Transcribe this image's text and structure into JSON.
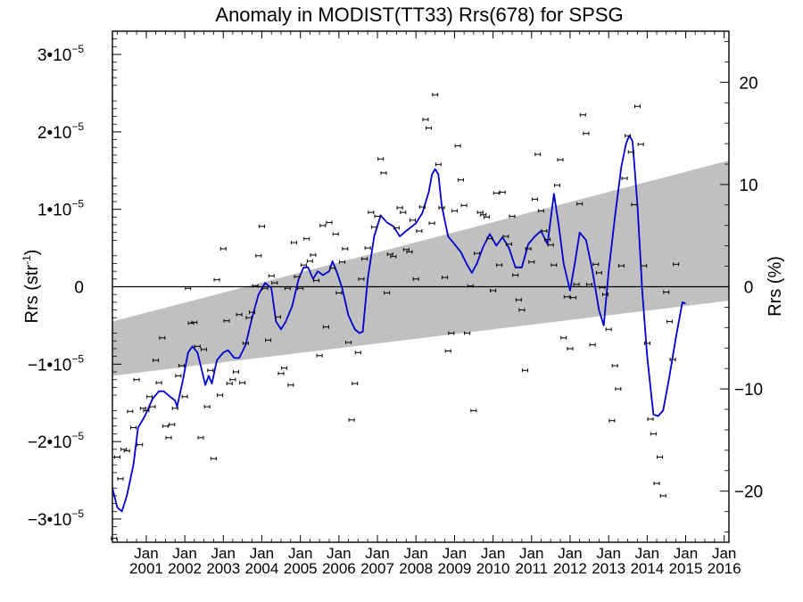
{
  "chart_data": {
    "type": "scatter",
    "title": "Anomaly in MODIST(TT33) Rrs(678) for SPSG",
    "ylabel": "Rrs (str",
    "ylabel_sup": "-1",
    "ylabel_close": ")",
    "y2label": "Rrs (%)",
    "x_range": [
      "2000-02-15",
      "2016-02-15"
    ],
    "ylim": [
      -3.3e-05,
      3.3e-05
    ],
    "y2lim": [
      -25,
      25
    ],
    "y_ticks": [
      {
        "value": -3e-05,
        "mantissa": "−3",
        "exp": "−5"
      },
      {
        "value": -2e-05,
        "mantissa": "−2",
        "exp": "−5"
      },
      {
        "value": -1e-05,
        "mantissa": "−1",
        "exp": "−5"
      },
      {
        "value": 0,
        "mantissa": "0",
        "exp": ""
      },
      {
        "value": 1e-05,
        "mantissa": "1",
        "exp": "−5"
      },
      {
        "value": 2e-05,
        "mantissa": "2",
        "exp": "−5"
      },
      {
        "value": 3e-05,
        "mantissa": "3",
        "exp": "−5"
      }
    ],
    "y2_ticks": [
      {
        "value": -20,
        "label": "−20"
      },
      {
        "value": -10,
        "label": "−10"
      },
      {
        "value": 0,
        "label": "0"
      },
      {
        "value": 10,
        "label": "10"
      },
      {
        "value": 20,
        "label": "20"
      }
    ],
    "x_ticks": [
      {
        "date": "2001-01-01",
        "month": "Jan",
        "year": "2001"
      },
      {
        "date": "2002-01-01",
        "month": "Jan",
        "year": "2002"
      },
      {
        "date": "2003-01-01",
        "month": "Jan",
        "year": "2003"
      },
      {
        "date": "2004-01-01",
        "month": "Jan",
        "year": "2004"
      },
      {
        "date": "2005-01-01",
        "month": "Jan",
        "year": "2005"
      },
      {
        "date": "2006-01-01",
        "month": "Jan",
        "year": "2006"
      },
      {
        "date": "2007-01-01",
        "month": "Jan",
        "year": "2007"
      },
      {
        "date": "2008-01-01",
        "month": "Jan",
        "year": "2008"
      },
      {
        "date": "2009-01-01",
        "month": "Jan",
        "year": "2009"
      },
      {
        "date": "2010-01-01",
        "month": "Jan",
        "year": "2010"
      },
      {
        "date": "2011-01-01",
        "month": "Jan",
        "year": "2011"
      },
      {
        "date": "2012-01-01",
        "month": "Jan",
        "year": "2012"
      },
      {
        "date": "2013-01-01",
        "month": "Jan",
        "year": "2013"
      },
      {
        "date": "2014-01-01",
        "month": "Jan",
        "year": "2014"
      },
      {
        "date": "2015-01-01",
        "month": "Jan",
        "year": "2015"
      },
      {
        "date": "2016-01-01",
        "month": "Jan",
        "year": "2016"
      }
    ],
    "band": {
      "start": {
        "date": "2000-02-15",
        "low": -1.15e-05,
        "high": -4.5e-06
      },
      "end": {
        "date": "2016-02-15",
        "low": -1.8e-06,
        "high": 1.63e-05
      }
    },
    "zero_line": 0,
    "colors": {
      "points": "#000000",
      "smooth_line": "#0000cc",
      "band": "#c0c0c0"
    },
    "points": [
      [
        "2000-03-01",
        -3.25e-05
      ],
      [
        "2000-04-01",
        -2.2e-05
      ],
      [
        "2000-05-01",
        -2.48e-05
      ],
      [
        "2000-06-01",
        -2.1e-05
      ],
      [
        "2000-07-01",
        -2.12e-05
      ],
      [
        "2000-08-01",
        -1.61e-05
      ],
      [
        "2000-09-01",
        -1.82e-05
      ],
      [
        "2000-10-01",
        -1.2e-05
      ],
      [
        "2000-11-01",
        -2.04e-05
      ],
      [
        "2000-12-01",
        -1.57e-05
      ],
      [
        "2001-01-01",
        -1.6e-05
      ],
      [
        "2001-02-01",
        -1.42e-05
      ],
      [
        "2001-03-01",
        -1.55e-05
      ],
      [
        "2001-04-01",
        -9.5e-06
      ],
      [
        "2001-05-01",
        -1.24e-05
      ],
      [
        "2001-06-01",
        -6.6e-06
      ],
      [
        "2001-07-01",
        -1.8e-05
      ],
      [
        "2001-08-01",
        -1.95e-05
      ],
      [
        "2001-09-01",
        -1.78e-05
      ],
      [
        "2001-10-01",
        -1.57e-05
      ],
      [
        "2001-11-01",
        -1.15e-05
      ],
      [
        "2001-12-01",
        -1.02e-05
      ],
      [
        "2002-01-01",
        -1.42e-05
      ],
      [
        "2002-02-01",
        -2e-07
      ],
      [
        "2002-03-01",
        -4.7e-06
      ],
      [
        "2002-04-01",
        -4.6e-06
      ],
      [
        "2002-05-01",
        -7.7e-06
      ],
      [
        "2002-06-01",
        -1.95e-05
      ],
      [
        "2002-07-01",
        -8.1e-06
      ],
      [
        "2002-08-01",
        -1.55e-05
      ],
      [
        "2002-09-01",
        -1.08e-05
      ],
      [
        "2002-10-01",
        -2.22e-05
      ],
      [
        "2002-11-01",
        9e-07
      ],
      [
        "2002-12-01",
        -1.4e-05
      ],
      [
        "2003-01-01",
        4.9e-06
      ],
      [
        "2003-02-01",
        -4.4e-06
      ],
      [
        "2003-03-01",
        -1.25e-05
      ],
      [
        "2003-04-01",
        -1.2e-05
      ],
      [
        "2003-05-01",
        -1.1e-05
      ],
      [
        "2003-06-01",
        -3.6e-06
      ],
      [
        "2003-07-01",
        -1.24e-05
      ],
      [
        "2003-08-01",
        -7.3e-06
      ],
      [
        "2003-09-01",
        -4e-06
      ],
      [
        "2003-10-01",
        -3.3e-06
      ],
      [
        "2003-11-01",
        1e-07
      ],
      [
        "2003-12-01",
        4e-06
      ],
      [
        "2004-01-01",
        7.8e-06
      ],
      [
        "2004-02-01",
        -2e-07
      ],
      [
        "2004-03-01",
        -6.9e-06
      ],
      [
        "2004-04-01",
        1.4e-06
      ],
      [
        "2004-05-01",
        5e-07
      ],
      [
        "2004-06-01",
        -3.9e-06
      ],
      [
        "2004-07-01",
        -1.12e-05
      ],
      [
        "2004-08-01",
        -1.05e-05
      ],
      [
        "2004-09-01",
        -2e-07
      ],
      [
        "2004-10-01",
        -1.27e-05
      ],
      [
        "2004-11-01",
        5.7e-06
      ],
      [
        "2004-12-01",
        1.3e-06
      ],
      [
        "2005-01-01",
        -2e-07
      ],
      [
        "2005-02-01",
        2.8e-06
      ],
      [
        "2005-03-01",
        6.2e-06
      ],
      [
        "2005-04-01",
        3.3e-06
      ],
      [
        "2005-05-01",
        4.1e-06
      ],
      [
        "2005-06-01",
        8e-07
      ],
      [
        "2005-07-01",
        -8.9e-06
      ],
      [
        "2005-08-01",
        7.9e-06
      ],
      [
        "2005-09-01",
        -5.2e-06
      ],
      [
        "2005-10-01",
        8.3e-06
      ],
      [
        "2005-11-01",
        2.4e-06
      ],
      [
        "2005-12-01",
        6.8e-06
      ],
      [
        "2006-01-01",
        -8e-07
      ],
      [
        "2006-02-01",
        3.2e-06
      ],
      [
        "2006-03-01",
        4.9e-06
      ],
      [
        "2006-04-01",
        -7.2e-06
      ],
      [
        "2006-05-01",
        -1.72e-05
      ],
      [
        "2006-06-01",
        -1.25e-05
      ],
      [
        "2006-07-01",
        -8.5e-06
      ],
      [
        "2006-08-01",
        1e-06
      ],
      [
        "2006-09-01",
        3.6e-06
      ],
      [
        "2006-10-01",
        5e-06
      ],
      [
        "2006-11-01",
        9.6e-06
      ],
      [
        "2006-12-01",
        7.7e-06
      ],
      [
        "2007-01-01",
        9.1e-06
      ],
      [
        "2007-02-01",
        1.65e-05
      ],
      [
        "2007-03-01",
        1.47e-05
      ],
      [
        "2007-04-01",
        -8e-07
      ],
      [
        "2007-05-01",
        4.2e-06
      ],
      [
        "2007-06-01",
        3.9e-06
      ],
      [
        "2007-07-01",
        7.6e-06
      ],
      [
        "2007-08-01",
        1.02e-05
      ],
      [
        "2007-09-01",
        9.6e-06
      ],
      [
        "2007-10-01",
        4.8e-06
      ],
      [
        "2007-11-01",
        4.5e-06
      ],
      [
        "2007-12-01",
        8.6e-06
      ],
      [
        "2008-01-01",
        1e-06
      ],
      [
        "2008-02-01",
        7.2e-06
      ],
      [
        "2008-03-01",
        1.03e-05
      ],
      [
        "2008-04-01",
        2.16e-05
      ],
      [
        "2008-05-01",
        2.05e-05
      ],
      [
        "2008-06-01",
        8.2e-06
      ],
      [
        "2008-07-01",
        2.48e-05
      ],
      [
        "2008-08-01",
        1.58e-05
      ],
      [
        "2008-09-01",
        1.02e-05
      ],
      [
        "2008-10-01",
        1.2e-06
      ],
      [
        "2008-11-01",
        -8.3e-06
      ],
      [
        "2008-12-01",
        -6e-06
      ],
      [
        "2009-01-01",
        9.8e-06
      ],
      [
        "2009-02-01",
        1.82e-05
      ],
      [
        "2009-03-01",
        1.38e-05
      ],
      [
        "2009-04-01",
        1.05e-05
      ],
      [
        "2009-05-01",
        -6e-06
      ],
      [
        "2009-06-01",
        1e-07
      ],
      [
        "2009-07-01",
        -1.6e-05
      ],
      [
        "2009-08-01",
        4.3e-06
      ],
      [
        "2009-09-01",
        9.6e-06
      ],
      [
        "2009-10-01",
        9.3e-06
      ],
      [
        "2009-11-01",
        9e-06
      ],
      [
        "2009-12-01",
        6.2e-06
      ],
      [
        "2010-01-01",
        -5e-07
      ],
      [
        "2010-02-01",
        1.21e-05
      ],
      [
        "2010-03-01",
        2.8e-06
      ],
      [
        "2010-04-01",
        1.22e-05
      ],
      [
        "2010-05-01",
        6.5e-06
      ],
      [
        "2010-06-01",
        5.5e-06
      ],
      [
        "2010-07-01",
        9.1e-06
      ],
      [
        "2010-08-01",
        1.5e-06
      ],
      [
        "2010-09-01",
        -1.7e-06
      ],
      [
        "2010-10-01",
        -3e-06
      ],
      [
        "2010-11-01",
        -1.08e-05
      ],
      [
        "2010-12-01",
        4.9e-06
      ],
      [
        "2011-01-01",
        3.2e-06
      ],
      [
        "2011-02-01",
        1.13e-05
      ],
      [
        "2011-03-01",
        1.71e-05
      ],
      [
        "2011-04-01",
        9.8e-06
      ],
      [
        "2011-05-01",
        7.2e-06
      ],
      [
        "2011-06-01",
        6.1e-06
      ],
      [
        "2011-07-01",
        5.4e-06
      ],
      [
        "2011-08-01",
        2.8e-06
      ],
      [
        "2011-09-01",
        1.31e-05
      ],
      [
        "2011-10-01",
        1.64e-05
      ],
      [
        "2011-11-01",
        -6.6e-06
      ],
      [
        "2011-12-01",
        -1.3e-06
      ],
      [
        "2012-01-01",
        -8e-06
      ],
      [
        "2012-02-01",
        -1.4e-06
      ],
      [
        "2012-03-01",
        3e-07
      ],
      [
        "2012-04-01",
        1.07e-05
      ],
      [
        "2012-05-01",
        2.22e-05
      ],
      [
        "2012-06-01",
        1.98e-05
      ],
      [
        "2012-07-01",
        3e-07
      ],
      [
        "2012-08-01",
        -7.5e-06
      ],
      [
        "2012-09-01",
        2.9e-06
      ],
      [
        "2012-10-01",
        1.8e-06
      ],
      [
        "2012-11-01",
        -1e-07
      ],
      [
        "2012-12-01",
        -1e-06
      ],
      [
        "2013-01-01",
        -5.5e-06
      ],
      [
        "2013-02-01",
        -1.73e-05
      ],
      [
        "2013-03-01",
        -1.02e-05
      ],
      [
        "2013-04-01",
        -1.32e-05
      ],
      [
        "2013-05-01",
        2.7e-06
      ],
      [
        "2013-06-01",
        1.4e-05
      ],
      [
        "2013-07-01",
        1.95e-05
      ],
      [
        "2013-08-01",
        1.74e-05
      ],
      [
        "2013-09-01",
        1.06e-05
      ],
      [
        "2013-10-01",
        2.33e-05
      ],
      [
        "2013-11-01",
        1.84e-05
      ],
      [
        "2013-12-01",
        2.7e-06
      ],
      [
        "2014-01-01",
        -7.3e-06
      ],
      [
        "2014-02-01",
        -1.71e-05
      ],
      [
        "2014-03-01",
        -1.9e-05
      ],
      [
        "2014-04-01",
        -2.54e-05
      ],
      [
        "2014-05-01",
        -2.2e-05
      ],
      [
        "2014-06-01",
        -2.7e-05
      ],
      [
        "2014-07-01",
        -7e-07
      ],
      [
        "2014-08-01",
        -4.5e-06
      ],
      [
        "2014-09-01",
        -9.4e-06
      ],
      [
        "2014-10-01",
        2.9e-06
      ]
    ],
    "smooth": [
      [
        "2000-02-15",
        -2.6e-05
      ],
      [
        "2000-04-01",
        -2.85e-05
      ],
      [
        "2000-05-15",
        -2.9e-05
      ],
      [
        "2000-07-01",
        -2.7e-05
      ],
      [
        "2000-09-01",
        -2.3e-05
      ],
      [
        "2000-10-15",
        -1.82e-05
      ],
      [
        "2000-12-15",
        -1.68e-05
      ],
      [
        "2001-03-01",
        -1.45e-05
      ],
      [
        "2001-05-01",
        -1.35e-05
      ],
      [
        "2001-06-15",
        -1.35e-05
      ],
      [
        "2001-08-15",
        -1.42e-05
      ],
      [
        "2001-10-01",
        -1.47e-05
      ],
      [
        "2001-10-20",
        -1.55e-05
      ],
      [
        "2001-12-15",
        -1.2e-05
      ],
      [
        "2002-02-01",
        -8.5e-06
      ],
      [
        "2002-03-15",
        -7.7e-06
      ],
      [
        "2002-05-01",
        -8.5e-06
      ],
      [
        "2002-06-01",
        -1.02e-05
      ],
      [
        "2002-07-15",
        -1.27e-05
      ],
      [
        "2002-08-15",
        -1.15e-05
      ],
      [
        "2002-09-15",
        -1.25e-05
      ],
      [
        "2002-11-01",
        -9.5e-06
      ],
      [
        "2003-01-01",
        -8.5e-06
      ],
      [
        "2003-02-15",
        -8.2e-06
      ],
      [
        "2003-04-15",
        -9.2e-06
      ],
      [
        "2003-06-01",
        -9.2e-06
      ],
      [
        "2003-08-01",
        -7.5e-06
      ],
      [
        "2003-10-01",
        -4e-06
      ],
      [
        "2003-12-01",
        -1e-06
      ],
      [
        "2004-02-01",
        5e-07
      ],
      [
        "2004-04-01",
        -2e-07
      ],
      [
        "2004-05-15",
        -4.5e-06
      ],
      [
        "2004-07-01",
        -5.5e-06
      ],
      [
        "2004-08-15",
        -4.5e-06
      ],
      [
        "2004-10-15",
        -2.5e-06
      ],
      [
        "2004-12-15",
        1e-06
      ],
      [
        "2005-02-01",
        2.5e-06
      ],
      [
        "2005-03-15",
        2.5e-06
      ],
      [
        "2005-05-01",
        1e-06
      ],
      [
        "2005-06-15",
        2e-06
      ],
      [
        "2005-08-01",
        1.5e-06
      ],
      [
        "2005-10-01",
        2e-06
      ],
      [
        "2005-11-01",
        3.3e-06
      ],
      [
        "2005-12-15",
        1.8e-06
      ],
      [
        "2006-02-01",
        -2e-07
      ],
      [
        "2006-04-01",
        -3.7e-06
      ],
      [
        "2006-06-01",
        -5.5e-06
      ],
      [
        "2006-07-15",
        -6e-06
      ],
      [
        "2006-08-15",
        -5.8e-06
      ],
      [
        "2006-10-01",
        1e-06
      ],
      [
        "2006-12-01",
        6.5e-06
      ],
      [
        "2007-02-01",
        9.2e-06
      ],
      [
        "2007-04-01",
        8.3e-06
      ],
      [
        "2007-06-01",
        7.8e-06
      ],
      [
        "2007-08-01",
        6.5e-06
      ],
      [
        "2007-10-01",
        7.2e-06
      ],
      [
        "2008-01-01",
        8.2e-06
      ],
      [
        "2008-03-01",
        9.5e-06
      ],
      [
        "2008-05-01",
        1.22e-05
      ],
      [
        "2008-06-01",
        1.45e-05
      ],
      [
        "2008-07-01",
        1.52e-05
      ],
      [
        "2008-08-01",
        1.45e-05
      ],
      [
        "2008-09-01",
        1.05e-05
      ],
      [
        "2008-11-01",
        6.5e-06
      ],
      [
        "2009-01-01",
        5.5e-06
      ],
      [
        "2009-03-01",
        4.5e-06
      ],
      [
        "2009-05-01",
        2.8e-06
      ],
      [
        "2009-06-15",
        1.8e-06
      ],
      [
        "2009-08-01",
        3e-06
      ],
      [
        "2009-10-01",
        5.2e-06
      ],
      [
        "2009-12-01",
        6.8e-06
      ],
      [
        "2010-02-01",
        5.3e-06
      ],
      [
        "2010-04-01",
        6.4e-06
      ],
      [
        "2010-06-01",
        5e-06
      ],
      [
        "2010-08-01",
        2.5e-06
      ],
      [
        "2010-10-01",
        2.5e-06
      ],
      [
        "2010-12-01",
        5.5e-06
      ],
      [
        "2011-02-01",
        6.5e-06
      ],
      [
        "2011-04-01",
        7.2e-06
      ],
      [
        "2011-06-01",
        5.5e-06
      ],
      [
        "2011-08-01",
        1.2e-05
      ],
      [
        "2011-09-15",
        8e-06
      ],
      [
        "2011-11-01",
        3e-06
      ],
      [
        "2012-01-01",
        -5e-07
      ],
      [
        "2012-02-15",
        3e-06
      ],
      [
        "2012-04-01",
        7e-06
      ],
      [
        "2012-06-01",
        6e-06
      ],
      [
        "2012-08-01",
        2e-06
      ],
      [
        "2012-10-01",
        -3e-06
      ],
      [
        "2012-11-15",
        -5e-06
      ],
      [
        "2013-01-01",
        2e-06
      ],
      [
        "2013-03-01",
        9e-06
      ],
      [
        "2013-05-01",
        1.55e-05
      ],
      [
        "2013-06-15",
        1.85e-05
      ],
      [
        "2013-07-15",
        1.95e-05
      ],
      [
        "2013-08-15",
        1.88e-05
      ],
      [
        "2013-10-01",
        1.05e-05
      ],
      [
        "2013-11-15",
        -5e-07
      ],
      [
        "2014-01-01",
        -9e-06
      ],
      [
        "2014-03-01",
        -1.65e-05
      ],
      [
        "2014-04-15",
        -1.67e-05
      ],
      [
        "2014-06-01",
        -1.6e-05
      ],
      [
        "2014-08-01",
        -1.15e-05
      ],
      [
        "2014-10-01",
        -6.5e-06
      ],
      [
        "2014-12-01",
        -2e-06
      ],
      [
        "2015-01-01",
        -2.2e-06
      ]
    ]
  }
}
